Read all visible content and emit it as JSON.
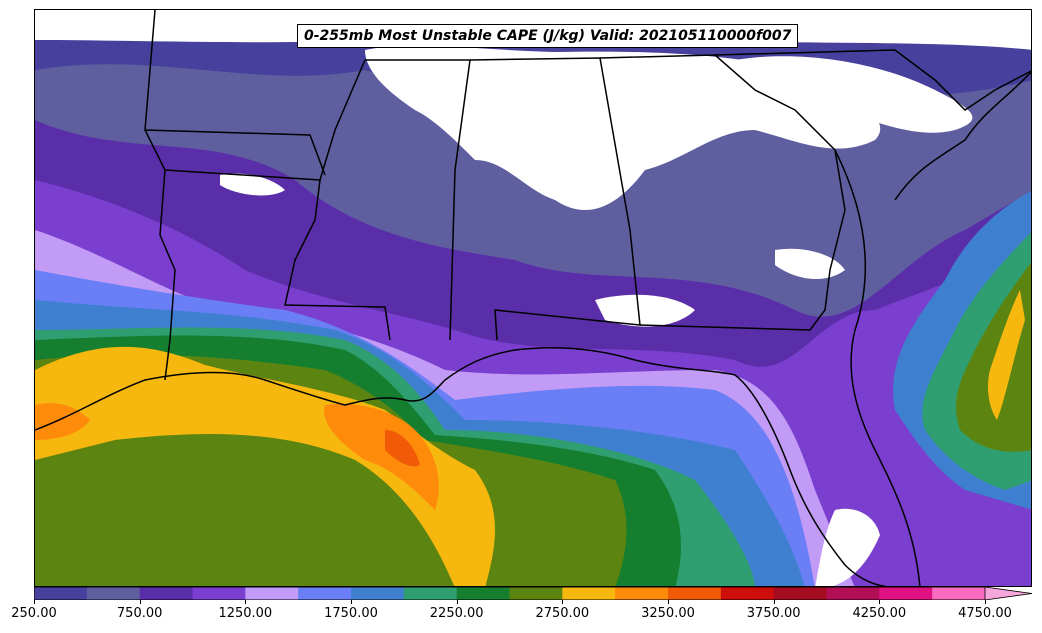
{
  "title": "0-255mb Most Unstable CAPE (J/kg) Valid: 202105110000f007",
  "colorbar": {
    "levels": [
      250,
      500,
      750,
      1000,
      1250,
      1500,
      1750,
      2000,
      2250,
      2500,
      2750,
      3000,
      3250,
      3500,
      3750,
      4000,
      4250,
      4500,
      4750
    ],
    "colors": [
      "#47409d",
      "#5f5fa0",
      "#5b2ea9",
      "#7a3fce",
      "#c29bf7",
      "#6a7ff5",
      "#3f7fd0",
      "#2f9f72",
      "#157f2f",
      "#5b8411",
      "#f6b80f",
      "#ff8b0b",
      "#f15a06",
      "#cd0e0b",
      "#a50c21",
      "#b10e55",
      "#e01183",
      "#f86bc1"
    ],
    "extend_color": "#f5a7dc",
    "tick_labels": [
      "250.00",
      "750.00",
      "1250.00",
      "1750.00",
      "2250.00",
      "2750.00",
      "3250.00",
      "3750.00",
      "4250.00",
      "4750.00"
    ]
  },
  "colors": {
    "background": "#ffffff",
    "borders": "#000000"
  }
}
